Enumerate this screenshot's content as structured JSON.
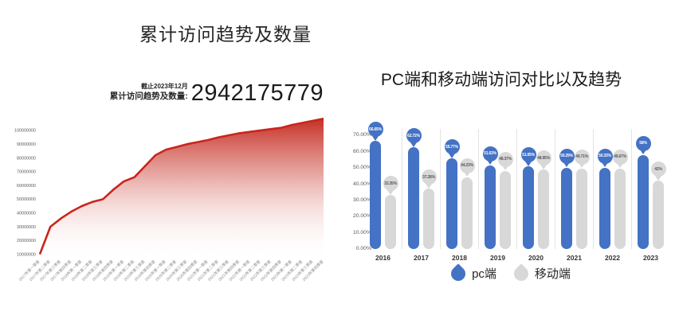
{
  "page": {
    "background": "#ffffff"
  },
  "left_chart": {
    "title": "累计访问趋势及数量",
    "stat": {
      "caption": "截止2023年12月",
      "label": "累计访问趋势及数量:",
      "value": "2942175779"
    }
  },
  "right_chart": {
    "title": "PC端和移动端访问对比以及趋势",
    "legend": [
      {
        "label": "pc端",
        "color": "#4472c4"
      },
      {
        "label": "移动端",
        "color": "#d8d8d8"
      }
    ]
  },
  "chart_data": [
    {
      "type": "area",
      "title": "累计访问趋势及数量",
      "annotation": "截止2023年12月 累计访问趋势及数量: 2942175779",
      "line_color": "#c9251c",
      "grid": false,
      "legend_position": "none",
      "ylim": [
        8000000,
        115000000
      ],
      "y_ticks": [
        10000000,
        20000000,
        30000000,
        40000000,
        50000000,
        60000000,
        70000000,
        80000000,
        90000000,
        100000000
      ],
      "x": [
        "2017年第一季度",
        "2017年第二季度",
        "2017年第三季度",
        "2017年第四季度",
        "2018年第一季度",
        "2018年第二季度",
        "2018年第三季度",
        "2018年第四季度",
        "2019年第一季度",
        "2019年第二季度",
        "2019年第三季度",
        "2019年第四季度",
        "2020年第一季度",
        "2020年第二季度",
        "2020年第三季度",
        "2020年第四季度",
        "2021年第一季度",
        "2021年第二季度",
        "2021年第三季度",
        "2021年第四季度",
        "2022年第一季度",
        "2022年第二季度",
        "2022年第三季度",
        "2022年第四季度",
        "2023年第一季度",
        "2023年第二季度",
        "2023年第三季度",
        "2023年第四季度"
      ],
      "values": [
        10000000,
        30000000,
        36000000,
        41000000,
        45000000,
        48000000,
        50000000,
        57000000,
        63000000,
        66000000,
        74000000,
        82000000,
        86000000,
        88000000,
        90000000,
        91500000,
        93000000,
        95000000,
        96500000,
        98000000,
        99000000,
        100000000,
        101000000,
        102000000,
        104000000,
        105500000,
        107000000,
        108500000
      ]
    },
    {
      "type": "bar",
      "title": "PC端和移动端访问对比以及趋势",
      "categories": [
        "2016",
        "2017",
        "2018",
        "2019",
        "2020",
        "2021",
        "2022",
        "2023"
      ],
      "series": [
        {
          "name": "pc端",
          "key": "pc",
          "color": "#4472c4",
          "label_color": "#ffffff",
          "values": [
            66.65,
            62.72,
            55.77,
            51.63,
            51.05,
            50.29,
            50.33,
            58
          ],
          "labels": [
            "66.65%",
            "62.72%",
            "55.77%",
            "51.63%",
            "51.05%",
            "50.29%",
            "50.33%",
            "58%"
          ]
        },
        {
          "name": "移动端",
          "key": "mobile",
          "color": "#d8d8d8",
          "label_color": "#595959",
          "values": [
            33.35,
            37.28,
            44.23,
            48.37,
            48.95,
            49.71,
            49.67,
            42
          ],
          "labels": [
            "33.35%",
            "37.28%",
            "44.23%",
            "48.37%",
            "48.95%",
            "49.71%",
            "49.67%",
            "42%"
          ]
        }
      ],
      "y_ticks": [
        {
          "label": "0.00%",
          "value": 0
        },
        {
          "label": "10.00%",
          "value": 10
        },
        {
          "label": "20.00%",
          "value": 20
        },
        {
          "label": "30.00%",
          "value": 30
        },
        {
          "label": "40.00%",
          "value": 40
        },
        {
          "label": "50.00%",
          "value": 50
        },
        {
          "label": "60.00%",
          "value": 60
        },
        {
          "label": "70.00%",
          "value": 70
        }
      ],
      "ylim": [
        0,
        70
      ],
      "grid": false,
      "legend": [
        "pc端",
        "移动端"
      ],
      "legend_position": "bottom"
    }
  ]
}
